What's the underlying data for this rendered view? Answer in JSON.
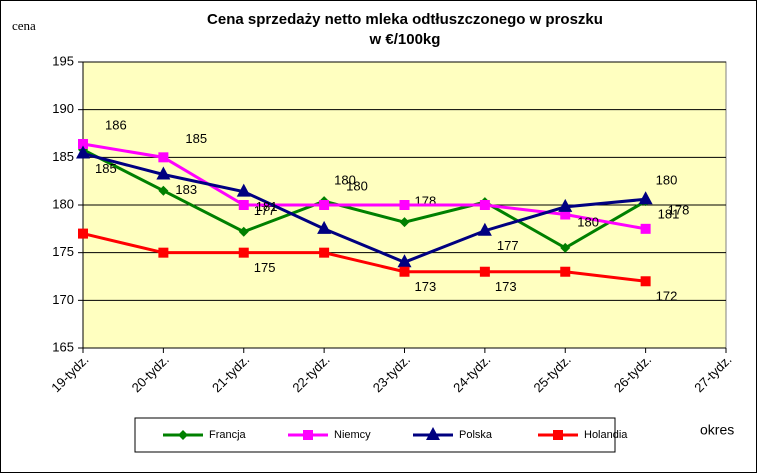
{
  "chart_data": {
    "type": "line",
    "title": [
      "Cena sprzedaży netto mleka odtłuszczonego w proszku",
      "w €/100kg"
    ],
    "y_label": "cena",
    "x_label": "okres",
    "categories": [
      "19-tydz.",
      "20-tydz.",
      "21-tydz.",
      "22-tydz.",
      "23-tydz.",
      "24-tydz.",
      "25-tydz.",
      "26-tydz.",
      "27-tydz."
    ],
    "ylim": [
      165,
      195
    ],
    "yticks": [
      165,
      170,
      175,
      180,
      185,
      190,
      195
    ],
    "grid": true,
    "legend": "bottom",
    "series": [
      {
        "name": "Francja",
        "color": "#008000",
        "marker": "diamond",
        "values": [
          185.8,
          181.5,
          177.2,
          180.4,
          178.2,
          180.3,
          175.5,
          180.4,
          null
        ],
        "value_labels": [
          null,
          null,
          "177",
          "180",
          "178",
          null,
          null,
          "180",
          null
        ]
      },
      {
        "name": "Niemcy",
        "color": "#FF00FF",
        "marker": "square",
        "values": [
          186.4,
          185,
          180,
          180,
          180,
          180,
          179,
          177.5,
          null
        ],
        "value_labels": [
          "186",
          "185",
          null,
          "180",
          null,
          null,
          null,
          "178",
          null
        ]
      },
      {
        "name": "Polska",
        "color": "#000080",
        "marker": "triangle",
        "values": [
          185.4,
          183.2,
          181.4,
          177.5,
          174,
          177.3,
          179.8,
          180.6,
          null
        ],
        "value_labels": [
          "185",
          "183",
          "181",
          null,
          null,
          "177",
          "180",
          "181",
          null
        ]
      },
      {
        "name": "Holandia",
        "color": "#FF0000",
        "marker": "square",
        "values": [
          177,
          175,
          175,
          175,
          173,
          173,
          173,
          172,
          null
        ],
        "value_labels": [
          null,
          null,
          "175",
          null,
          "173",
          "173",
          null,
          "172",
          null
        ]
      }
    ]
  }
}
